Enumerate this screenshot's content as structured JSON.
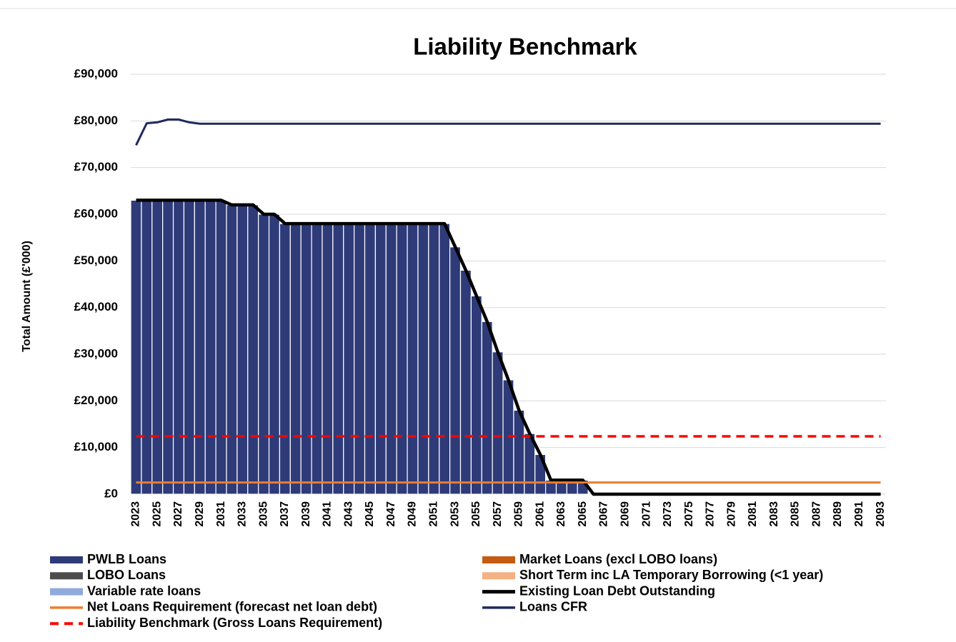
{
  "chart_data": {
    "type": "combo",
    "title": "Liability Benchmark",
    "y_label": "Total Amount (£'000)",
    "categories": [
      "2023",
      null,
      "2025",
      null,
      "2027",
      null,
      "2029",
      null,
      "2031",
      null,
      "2033",
      null,
      "2035",
      null,
      "2037",
      null,
      "2039",
      null,
      "2041",
      null,
      "2043",
      null,
      "2045",
      null,
      "2047",
      null,
      "2049",
      null,
      "2051",
      null,
      "2053",
      null,
      "2055",
      null,
      "2057",
      null,
      "2059",
      null,
      "2061",
      null,
      "2063",
      null,
      "2065",
      null,
      "2067",
      null,
      "2069",
      null,
      "2071",
      null,
      "2073",
      null,
      "2075",
      null,
      "2077",
      null,
      "2079",
      null,
      "2081",
      null,
      "2083",
      null,
      "2085",
      null,
      "2087",
      null,
      "2089",
      null,
      "2091",
      null,
      "2093"
    ],
    "ylim": [
      0,
      90000
    ],
    "yticks": [
      {
        "value": 0,
        "label": "£0"
      },
      {
        "value": 10000,
        "label": "£10,000"
      },
      {
        "value": 20000,
        "label": "£20,000"
      },
      {
        "value": 30000,
        "label": "£30,000"
      },
      {
        "value": 40000,
        "label": "£40,000"
      },
      {
        "value": 50000,
        "label": "£50,000"
      },
      {
        "value": 60000,
        "label": "£60,000"
      },
      {
        "value": 70000,
        "label": "£70,000"
      },
      {
        "value": 80000,
        "label": "£80,000"
      },
      {
        "value": 90000,
        "label": "£90,000"
      }
    ],
    "grid": true,
    "series": [
      {
        "name": "PWLB Loans",
        "color": "#2e3b78",
        "style": "bar",
        "values": [
          63000,
          63000,
          63000,
          63000,
          63000,
          63000,
          63000,
          63000,
          63000,
          62000,
          62000,
          62000,
          60000,
          60000,
          58000,
          58000,
          58000,
          58000,
          58000,
          58000,
          58000,
          58000,
          58000,
          58000,
          58000,
          58000,
          58000,
          58000,
          58000,
          58000,
          53000,
          48000,
          42500,
          37000,
          30500,
          24500,
          18000,
          13000,
          8500,
          3000,
          3000,
          3000,
          3000,
          0,
          0,
          0,
          0,
          0,
          0,
          0,
          0,
          0,
          0,
          0,
          0,
          0,
          0,
          0,
          0,
          0,
          0,
          0,
          0,
          0,
          0,
          0,
          0,
          0,
          0,
          0,
          0
        ]
      },
      {
        "name": "Market Loans (excl LOBO loans)",
        "color": "#c55a11",
        "style": "bar",
        "values": [
          0,
          0,
          0,
          0,
          0,
          0,
          0,
          0,
          0,
          0,
          0,
          0,
          0,
          0,
          0,
          0,
          0,
          0,
          0,
          0,
          0,
          0,
          0,
          0,
          0,
          0,
          0,
          0,
          0,
          0,
          0,
          0,
          0,
          0,
          0,
          0,
          0,
          0,
          0,
          0,
          0,
          0,
          0,
          0,
          0,
          0,
          0,
          0,
          0,
          0,
          0,
          0,
          0,
          0,
          0,
          0,
          0,
          0,
          0,
          0,
          0,
          0,
          0,
          0,
          0,
          0,
          0,
          0,
          0,
          0,
          0
        ]
      },
      {
        "name": "LOBO Loans",
        "color": "#4d4d4d",
        "style": "bar",
        "values": [
          0,
          0,
          0,
          0,
          0,
          0,
          0,
          0,
          0,
          0,
          0,
          0,
          0,
          0,
          0,
          0,
          0,
          0,
          0,
          0,
          0,
          0,
          0,
          0,
          0,
          0,
          0,
          0,
          0,
          0,
          0,
          0,
          0,
          0,
          0,
          0,
          0,
          0,
          0,
          0,
          0,
          0,
          0,
          0,
          0,
          0,
          0,
          0,
          0,
          0,
          0,
          0,
          0,
          0,
          0,
          0,
          0,
          0,
          0,
          0,
          0,
          0,
          0,
          0,
          0,
          0,
          0,
          0,
          0,
          0,
          0
        ]
      },
      {
        "name": "Short Term inc LA Temporary Borrowing (<1 year)",
        "color": "#f4b183",
        "style": "bar",
        "values": [
          0,
          0,
          0,
          0,
          0,
          0,
          0,
          0,
          0,
          0,
          0,
          0,
          0,
          0,
          0,
          0,
          0,
          0,
          0,
          0,
          0,
          0,
          0,
          0,
          0,
          0,
          0,
          0,
          0,
          0,
          0,
          0,
          0,
          0,
          0,
          0,
          0,
          0,
          0,
          0,
          0,
          0,
          0,
          0,
          0,
          0,
          0,
          0,
          0,
          0,
          0,
          0,
          0,
          0,
          0,
          0,
          0,
          0,
          0,
          0,
          0,
          0,
          0,
          0,
          0,
          0,
          0,
          0,
          0,
          0,
          0
        ]
      },
      {
        "name": "Variable rate loans",
        "color": "#8faadc",
        "style": "bar",
        "values": [
          0,
          0,
          0,
          0,
          0,
          0,
          0,
          0,
          0,
          0,
          0,
          0,
          0,
          0,
          0,
          0,
          0,
          0,
          0,
          0,
          0,
          0,
          0,
          0,
          0,
          0,
          0,
          0,
          0,
          0,
          0,
          0,
          0,
          0,
          0,
          0,
          0,
          0,
          0,
          0,
          0,
          0,
          0,
          0,
          0,
          0,
          0,
          0,
          0,
          0,
          0,
          0,
          0,
          0,
          0,
          0,
          0,
          0,
          0,
          0,
          0,
          0,
          0,
          0,
          0,
          0,
          0,
          0,
          0,
          0,
          0
        ]
      },
      {
        "name": "Existing Loan Debt Outstanding",
        "color": "#000000",
        "style": "thick-line",
        "values": [
          63000,
          63000,
          63000,
          63000,
          63000,
          63000,
          63000,
          63000,
          63000,
          62000,
          62000,
          62000,
          60000,
          60000,
          58000,
          58000,
          58000,
          58000,
          58000,
          58000,
          58000,
          58000,
          58000,
          58000,
          58000,
          58000,
          58000,
          58000,
          58000,
          58000,
          53000,
          48000,
          42500,
          37000,
          30500,
          24500,
          18000,
          13000,
          8500,
          3000,
          3000,
          3000,
          3000,
          0,
          0,
          0,
          0,
          0,
          0,
          0,
          0,
          0,
          0,
          0,
          0,
          0,
          0,
          0,
          0,
          0,
          0,
          0,
          0,
          0,
          0,
          0,
          0,
          0,
          0,
          0,
          0
        ]
      },
      {
        "name": "Net Loans Requirement (forecast net loan debt)",
        "color": "#ed7d31",
        "style": "line",
        "values": [
          2500,
          2500,
          2500,
          2500,
          2500,
          2500,
          2500,
          2500,
          2500,
          2500,
          2500,
          2500,
          2500,
          2500,
          2500,
          2500,
          2500,
          2500,
          2500,
          2500,
          2500,
          2500,
          2500,
          2500,
          2500,
          2500,
          2500,
          2500,
          2500,
          2500,
          2500,
          2500,
          2500,
          2500,
          2500,
          2500,
          2500,
          2500,
          2500,
          2500,
          2500,
          2500,
          2500,
          2500,
          2500,
          2500,
          2500,
          2500,
          2500,
          2500,
          2500,
          2500,
          2500,
          2500,
          2500,
          2500,
          2500,
          2500,
          2500,
          2500,
          2500,
          2500,
          2500,
          2500,
          2500,
          2500,
          2500,
          2500,
          2500,
          2500,
          2500
        ]
      },
      {
        "name": "Loans CFR",
        "color": "#1f2a5c",
        "style": "line",
        "values": [
          74800,
          79500,
          79700,
          80300,
          80300,
          79700,
          79400,
          79400,
          79400,
          79400,
          79400,
          79400,
          79400,
          79400,
          79400,
          79400,
          79400,
          79400,
          79400,
          79400,
          79400,
          79400,
          79400,
          79400,
          79400,
          79400,
          79400,
          79400,
          79400,
          79400,
          79400,
          79400,
          79400,
          79400,
          79400,
          79400,
          79400,
          79400,
          79400,
          79400,
          79400,
          79400,
          79400,
          79400,
          79400,
          79400,
          79400,
          79400,
          79400,
          79400,
          79400,
          79400,
          79400,
          79400,
          79400,
          79400,
          79400,
          79400,
          79400,
          79400,
          79400,
          79400,
          79400,
          79400,
          79400,
          79400,
          79400,
          79400,
          79400,
          79400,
          79400
        ]
      },
      {
        "name": "Liability Benchmark (Gross Loans Requirement)",
        "color": "#ff0000",
        "style": "dashed-line",
        "values": [
          12400,
          12400,
          12400,
          12400,
          12400,
          12400,
          12400,
          12400,
          12400,
          12400,
          12400,
          12400,
          12400,
          12400,
          12400,
          12400,
          12400,
          12400,
          12400,
          12400,
          12400,
          12400,
          12400,
          12400,
          12400,
          12400,
          12400,
          12400,
          12400,
          12400,
          12400,
          12400,
          12400,
          12400,
          12400,
          12400,
          12400,
          12400,
          12400,
          12400,
          12400,
          12400,
          12400,
          12400,
          12400,
          12400,
          12400,
          12400,
          12400,
          12400,
          12400,
          12400,
          12400,
          12400,
          12400,
          12400,
          12400,
          12400,
          12400,
          12400,
          12400,
          12400,
          12400,
          12400,
          12400,
          12400,
          12400,
          12400,
          12400,
          12400,
          12400
        ]
      }
    ]
  }
}
